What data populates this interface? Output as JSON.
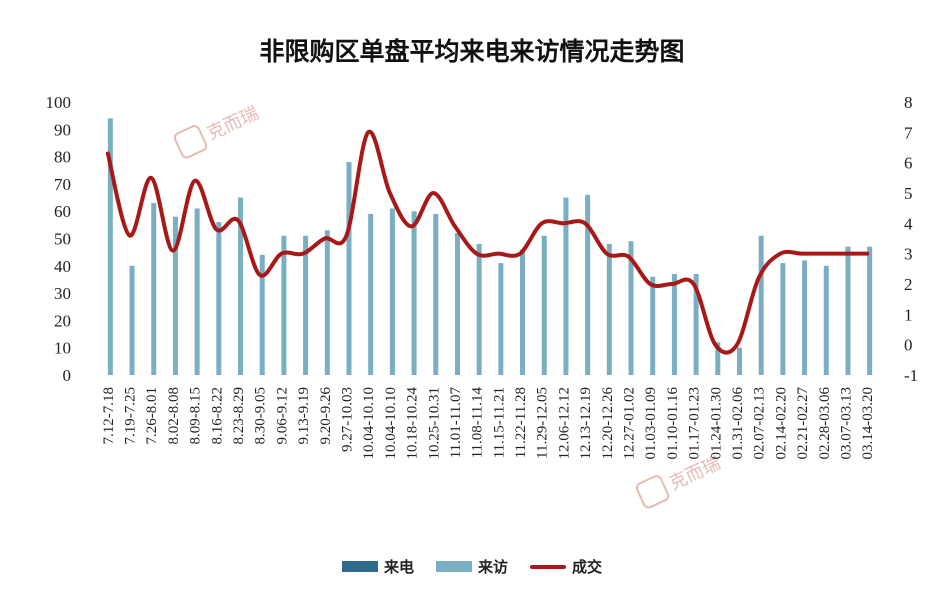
{
  "chart_data": {
    "type": "bar+line",
    "title": "非限购区单盘平均来电来访情况走势图",
    "categories": [
      "7.12-7.18",
      "7.19-7.25",
      "7.26-8.01",
      "8.02-8.08",
      "8.09-8.15",
      "8.16-8.22",
      "8.23-8.29",
      "8.30-9.05",
      "9.06-9.12",
      "9.13-9.19",
      "9.20-9.26",
      "9.27-10.03",
      "10.04-10.10",
      "10.04-10.10",
      "10.18-10.24",
      "10.25-10.31",
      "11.01-11.07",
      "11.08-11.14",
      "11.15-11.21",
      "11.22-11.28",
      "11.29-12.05",
      "12.06-12.12",
      "12.13-12.19",
      "12.20-12.26",
      "12.27-01.02",
      "01.03-01.09",
      "01.10-01.16",
      "01.17-01.23",
      "01.24-01.30",
      "01.31-02.06",
      "02.07-02.13",
      "02.14-02.20",
      "02.21-02.27",
      "02.28-03.06",
      "03.07-03.13",
      "03.14-03.20"
    ],
    "y_left": {
      "min": 0,
      "max": 100,
      "ticks": [
        "0",
        "10",
        "20",
        "30",
        "40",
        "50",
        "60",
        "70",
        "80",
        "90",
        "100"
      ]
    },
    "y_right": {
      "min": -1,
      "max": 8,
      "ticks": [
        "-1",
        "0",
        "1",
        "2",
        "3",
        "4",
        "5",
        "6",
        "7",
        "8"
      ]
    },
    "series": [
      {
        "name": "来电",
        "kind": "bar",
        "axis": "left",
        "color": "#2e6b8a",
        "values": [
          0,
          0,
          0,
          0,
          0,
          0,
          0,
          0,
          0,
          0,
          0,
          0,
          0,
          0,
          0,
          0,
          0,
          0,
          0,
          0,
          0,
          0,
          0,
          0,
          0,
          0,
          0,
          0,
          0,
          0,
          0,
          0,
          0,
          0,
          0,
          0
        ]
      },
      {
        "name": "来访",
        "kind": "bar",
        "axis": "left",
        "color": "#7aaec3",
        "values": [
          94,
          40,
          63,
          58,
          61,
          56,
          65,
          44,
          51,
          51,
          53,
          78,
          59,
          61,
          60,
          59,
          52,
          48,
          41,
          46,
          51,
          65,
          66,
          48,
          49,
          36,
          37,
          37,
          12,
          10,
          51,
          41,
          42,
          40,
          47,
          47
        ]
      },
      {
        "name": "成交",
        "kind": "line",
        "axis": "right",
        "color": "#a81818",
        "values": [
          6.3,
          3.6,
          5.5,
          3.1,
          5.4,
          3.8,
          4.1,
          2.3,
          3.0,
          3.0,
          3.5,
          3.6,
          7.0,
          5.0,
          3.9,
          5.0,
          3.9,
          3.0,
          3.0,
          3.0,
          4.0,
          4.0,
          4.0,
          3.0,
          2.9,
          2.0,
          2.0,
          2.0,
          0.0,
          0.0,
          2.2,
          3.0,
          3.0,
          3.0,
          3.0,
          3.0
        ]
      }
    ],
    "legend_position": "bottom",
    "grid": false
  },
  "watermark": "克而瑞"
}
